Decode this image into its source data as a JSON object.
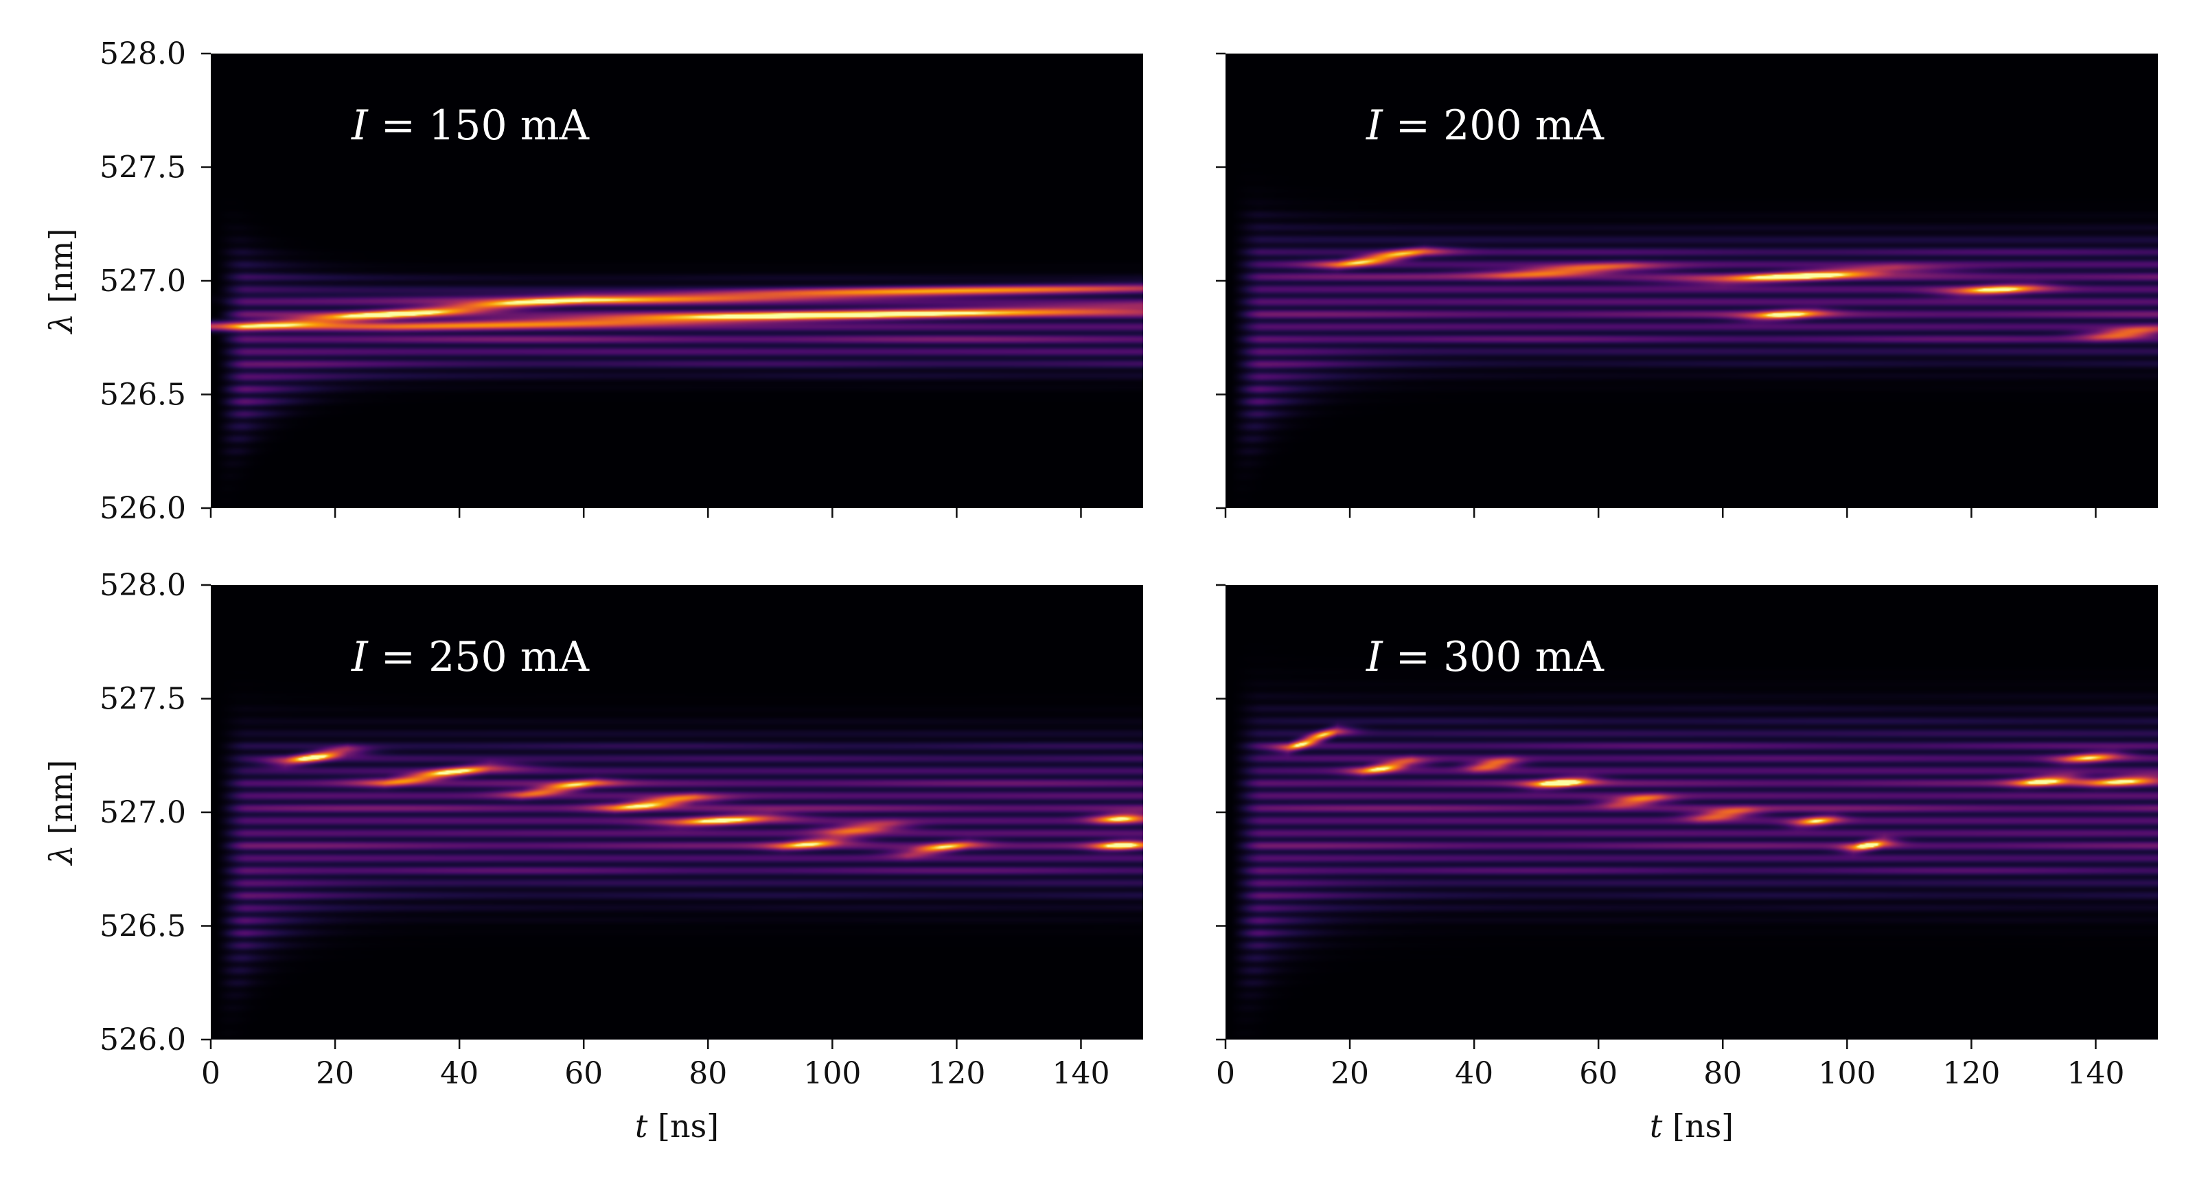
{
  "chart_data": [
    {
      "type": "heatmap",
      "annotation": {
        "prefix": "I",
        "text": " = 150 mA"
      },
      "xlabel": {
        "var": "t",
        "unit": " [ns]",
        "shown": false
      },
      "ylabel": {
        "var": "λ",
        "unit": " [nm]",
        "shown": true
      },
      "xlim": [
        0,
        150
      ],
      "ylim": [
        526.0,
        528.0
      ],
      "xticks": [
        "0",
        "20",
        "40",
        "60",
        "80",
        "100",
        "120",
        "140"
      ],
      "yticks": [
        "526.0",
        "526.5",
        "527.0",
        "527.5",
        "528.0"
      ],
      "xtick_labels_shown": false,
      "ytick_labels_shown": true,
      "colormap": "inferno",
      "envelope": {
        "lower": 526.58,
        "upper": 527.0,
        "lower_initial": 526.05,
        "upper_initial": 527.25
      },
      "mode_spacing_nm": 0.055,
      "bright_streaks": [
        {
          "t0": 5,
          "t1": 60,
          "lambda0": 526.8,
          "lambda1": 526.92,
          "intensity": 0.9
        },
        {
          "t0": 60,
          "t1": 150,
          "lambda0": 526.92,
          "lambda1": 526.97,
          "intensity": 0.85
        },
        {
          "t0": 30,
          "t1": 150,
          "lambda0": 526.8,
          "lambda1": 526.88,
          "intensity": 0.95
        }
      ]
    },
    {
      "type": "heatmap",
      "annotation": {
        "prefix": "I",
        "text": " = 200 mA"
      },
      "xlabel": {
        "var": "t",
        "unit": " [ns]",
        "shown": false
      },
      "ylabel": {
        "var": "λ",
        "unit": " [nm]",
        "shown": false
      },
      "xlim": [
        0,
        150
      ],
      "ylim": [
        526.0,
        528.0
      ],
      "xticks": [
        "0",
        "20",
        "40",
        "60",
        "80",
        "100",
        "120",
        "140"
      ],
      "yticks": [
        "526.0",
        "526.5",
        "527.0",
        "527.5",
        "528.0"
      ],
      "xtick_labels_shown": false,
      "ytick_labels_shown": false,
      "colormap": "inferno",
      "envelope": {
        "lower": 526.62,
        "upper": 527.22,
        "lower_initial": 526.05,
        "upper_initial": 527.3
      },
      "mode_spacing_nm": 0.055,
      "bright_streaks": [
        {
          "t0": 18,
          "t1": 32,
          "lambda0": 527.07,
          "lambda1": 527.13,
          "intensity": 1.0
        },
        {
          "t0": 45,
          "t1": 65,
          "lambda0": 527.03,
          "lambda1": 527.06,
          "intensity": 0.85
        },
        {
          "t0": 80,
          "t1": 108,
          "lambda0": 527.0,
          "lambda1": 527.05,
          "intensity": 0.9
        },
        {
          "t0": 85,
          "t1": 95,
          "lambda0": 526.84,
          "lambda1": 526.86,
          "intensity": 0.8
        },
        {
          "t0": 118,
          "t1": 130,
          "lambda0": 526.95,
          "lambda1": 526.97,
          "intensity": 0.85
        },
        {
          "t0": 140,
          "t1": 150,
          "lambda0": 526.76,
          "lambda1": 526.78,
          "intensity": 0.85
        }
      ]
    },
    {
      "type": "heatmap",
      "annotation": {
        "prefix": "I",
        "text": " = 250 mA"
      },
      "xlabel": {
        "var": "t",
        "unit": " [ns]",
        "shown": true
      },
      "ylabel": {
        "var": "λ",
        "unit": " [nm]",
        "shown": true
      },
      "xlim": [
        0,
        150
      ],
      "ylim": [
        526.0,
        528.0
      ],
      "xticks": [
        "0",
        "20",
        "40",
        "60",
        "80",
        "100",
        "120",
        "140"
      ],
      "yticks": [
        "526.0",
        "526.5",
        "527.0",
        "527.5",
        "528.0"
      ],
      "xtick_labels_shown": true,
      "ytick_labels_shown": true,
      "colormap": "inferno",
      "envelope": {
        "lower": 526.6,
        "upper": 527.35,
        "lower_initial": 526.0,
        "upper_initial": 527.35
      },
      "mode_spacing_nm": 0.055,
      "bright_streaks": [
        {
          "t0": 12,
          "t1": 22,
          "lambda0": 527.22,
          "lambda1": 527.27,
          "intensity": 1.0
        },
        {
          "t0": 28,
          "t1": 45,
          "lambda0": 527.13,
          "lambda1": 527.2,
          "intensity": 0.95
        },
        {
          "t0": 50,
          "t1": 62,
          "lambda0": 527.08,
          "lambda1": 527.13,
          "intensity": 0.85
        },
        {
          "t0": 65,
          "t1": 78,
          "lambda0": 527.02,
          "lambda1": 527.06,
          "intensity": 1.0
        },
        {
          "t0": 75,
          "t1": 90,
          "lambda0": 526.95,
          "lambda1": 526.98,
          "intensity": 0.85
        },
        {
          "t0": 92,
          "t1": 102,
          "lambda0": 526.85,
          "lambda1": 526.88,
          "intensity": 0.8
        },
        {
          "t0": 100,
          "t1": 110,
          "lambda0": 526.92,
          "lambda1": 526.94,
          "intensity": 0.75
        },
        {
          "t0": 112,
          "t1": 122,
          "lambda0": 526.82,
          "lambda1": 526.86,
          "intensity": 0.8
        },
        {
          "t0": 143,
          "t1": 150,
          "lambda0": 526.97,
          "lambda1": 526.98,
          "intensity": 0.9
        },
        {
          "t0": 143,
          "t1": 150,
          "lambda0": 526.85,
          "lambda1": 526.86,
          "intensity": 0.85
        }
      ]
    },
    {
      "type": "heatmap",
      "annotation": {
        "prefix": "I",
        "text": " = 300 mA"
      },
      "xlabel": {
        "var": "t",
        "unit": " [ns]",
        "shown": true
      },
      "ylabel": {
        "var": "λ",
        "unit": " [nm]",
        "shown": false
      },
      "xlim": [
        0,
        150
      ],
      "ylim": [
        526.0,
        528.0
      ],
      "xticks": [
        "0",
        "20",
        "40",
        "60",
        "80",
        "100",
        "120",
        "140"
      ],
      "yticks": [
        "526.0",
        "526.5",
        "527.0",
        "527.5",
        "528.0"
      ],
      "xtick_labels_shown": true,
      "ytick_labels_shown": false,
      "colormap": "inferno",
      "envelope": {
        "lower": 526.6,
        "upper": 527.45,
        "lower_initial": 526.0,
        "upper_initial": 527.45
      },
      "mode_spacing_nm": 0.055,
      "bright_streaks": [
        {
          "t0": 10,
          "t1": 18,
          "lambda0": 527.28,
          "lambda1": 527.36,
          "intensity": 1.0
        },
        {
          "t0": 22,
          "t1": 30,
          "lambda0": 527.18,
          "lambda1": 527.22,
          "intensity": 0.95
        },
        {
          "t0": 40,
          "t1": 46,
          "lambda0": 527.2,
          "lambda1": 527.22,
          "intensity": 0.85
        },
        {
          "t0": 50,
          "t1": 58,
          "lambda0": 527.12,
          "lambda1": 527.14,
          "intensity": 1.0
        },
        {
          "t0": 62,
          "t1": 70,
          "lambda0": 527.04,
          "lambda1": 527.06,
          "intensity": 0.8
        },
        {
          "t0": 76,
          "t1": 84,
          "lambda0": 526.98,
          "lambda1": 527.0,
          "intensity": 0.8
        },
        {
          "t0": 92,
          "t1": 98,
          "lambda0": 526.95,
          "lambda1": 526.97,
          "intensity": 0.75
        },
        {
          "t0": 101,
          "t1": 106,
          "lambda0": 526.84,
          "lambda1": 526.87,
          "intensity": 0.9
        },
        {
          "t0": 128,
          "t1": 136,
          "lambda0": 527.13,
          "lambda1": 527.15,
          "intensity": 0.9
        },
        {
          "t0": 140,
          "t1": 150,
          "lambda0": 527.13,
          "lambda1": 527.15,
          "intensity": 0.85
        },
        {
          "t0": 135,
          "t1": 143,
          "lambda0": 527.23,
          "lambda1": 527.25,
          "intensity": 0.75
        }
      ]
    }
  ]
}
